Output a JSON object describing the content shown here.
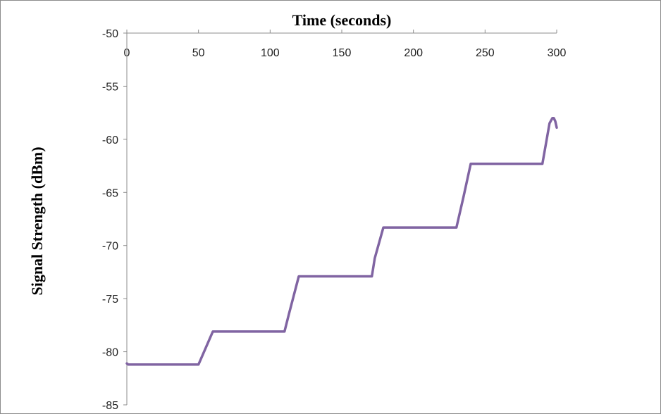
{
  "chart_data": {
    "type": "line",
    "title": "",
    "xlabel": "Time (seconds)",
    "ylabel": "Signal Strength (dBm)",
    "x_axis_position": "top",
    "xlim": [
      0,
      300
    ],
    "ylim": [
      -85,
      -50
    ],
    "x_ticks": [
      0,
      50,
      100,
      150,
      200,
      250,
      300
    ],
    "y_ticks": [
      -50,
      -55,
      -60,
      -65,
      -70,
      -75,
      -80,
      -85
    ],
    "grid": false,
    "legend": "none",
    "series": [
      {
        "color": "#8064A2",
        "x": [
          0,
          1,
          50,
          60,
          110,
          113,
          120,
          171,
          173,
          179,
          230,
          235,
          240,
          290,
          292,
          295,
          297,
          298,
          299,
          300
        ],
        "y": [
          -81.1,
          -81.2,
          -81.2,
          -78.1,
          -78.1,
          -76.5,
          -72.9,
          -72.9,
          -71.2,
          -68.3,
          -68.3,
          -65.4,
          -62.3,
          -62.3,
          -60.8,
          -58.5,
          -58.0,
          -58.0,
          -58.3,
          -58.9
        ]
      }
    ]
  }
}
